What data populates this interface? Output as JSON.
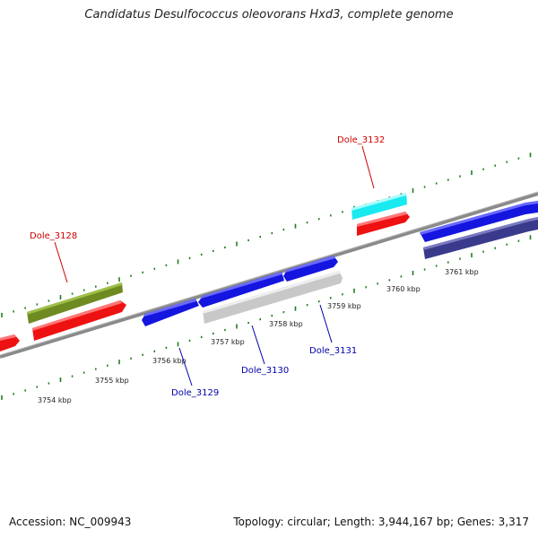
{
  "title": "Candidatus Desulfococcus oleovorans Hxd3, complete genome",
  "footer": {
    "accession": "Accession: NC_009943",
    "summary": "Topology: circular; Length: 3,944,167 bp; Genes: 3,317"
  },
  "scale_labels": [
    "3754 kbp",
    "3755 kbp",
    "3756 kbp",
    "3757 kbp",
    "3758 kbp",
    "3759 kbp",
    "3760 kbp",
    "3761 kbp"
  ],
  "gene_labels": [
    {
      "text": "Dole_3128",
      "color": "#cc0000"
    },
    {
      "text": "Dole_3132",
      "color": "#cc0000"
    },
    {
      "text": "Dole_3129",
      "color": "#0000aa"
    },
    {
      "text": "Dole_3130",
      "color": "#0000aa"
    },
    {
      "text": "Dole_3131",
      "color": "#0000aa"
    }
  ],
  "colors": {
    "backbone": "#8a8a8a",
    "ticks": "#1e7d1e",
    "red": "#ee1111",
    "olive": "#6e8b22",
    "blue": "#1515e0",
    "cyan": "#19eaf0",
    "gray": "#c8c8c8",
    "navy": "#3a3a8c"
  }
}
